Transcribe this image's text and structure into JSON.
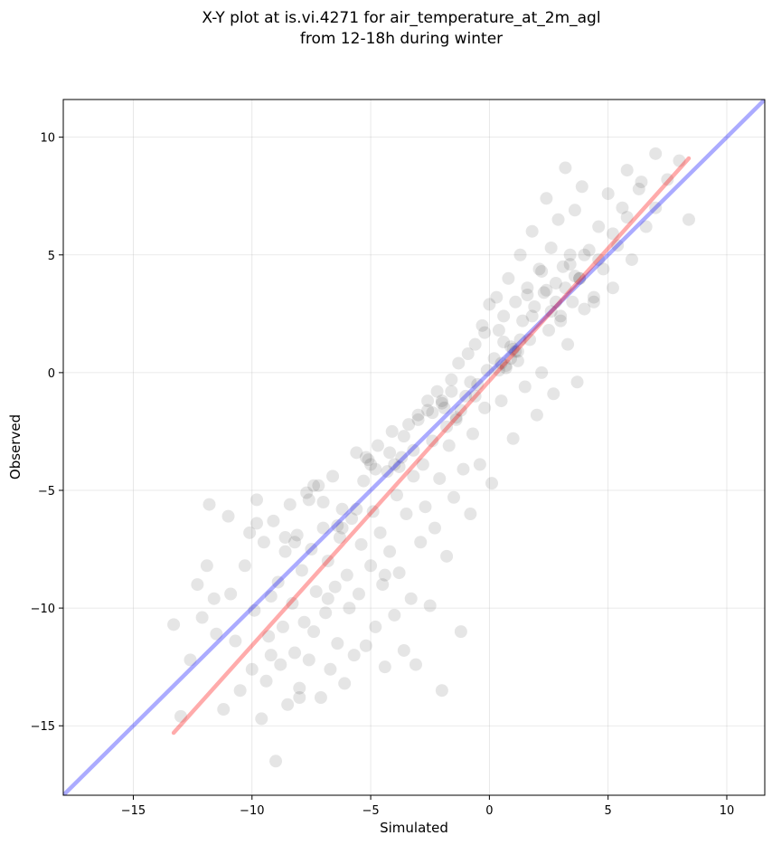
{
  "chart_data": {
    "type": "scatter",
    "title_lines": [
      "X-Y plot at is.vi.4271 for air_temperature_at_2m_agl",
      "from 12-18h during winter"
    ],
    "xlabel": "Simulated",
    "ylabel": "Observed",
    "xlim": [
      -17.95,
      11.6
    ],
    "ylim": [
      -17.95,
      11.6
    ],
    "xticks": [
      -15,
      -10,
      -5,
      0,
      5,
      10
    ],
    "yticks": [
      -15,
      -10,
      -5,
      0,
      5,
      10
    ],
    "xtick_labels": [
      "−15",
      "−10",
      "−5",
      "0",
      "5",
      "10"
    ],
    "ytick_labels": [
      "−15",
      "−10",
      "−5",
      "0",
      "5",
      "10"
    ],
    "grid": true,
    "legend": "none",
    "point_color": "#000000",
    "point_opacity": 0.1,
    "x": [
      -13.3,
      -13.0,
      -12.6,
      -12.3,
      -12.1,
      -11.9,
      -11.8,
      -11.6,
      -11.5,
      -11.2,
      -11.0,
      -10.9,
      -10.7,
      -10.5,
      -10.3,
      -10.1,
      -10.0,
      -9.9,
      -9.8,
      -9.6,
      -9.5,
      -9.4,
      -9.3,
      -9.2,
      -9.1,
      -9.0,
      -8.9,
      -8.8,
      -8.7,
      -8.6,
      -8.5,
      -8.4,
      -8.3,
      -8.2,
      -8.1,
      -8.0,
      -7.9,
      -7.8,
      -7.7,
      -7.6,
      -7.5,
      -7.4,
      -7.3,
      -7.2,
      -7.1,
      -7.0,
      -6.9,
      -6.8,
      -6.7,
      -6.6,
      -6.5,
      -6.4,
      -6.3,
      -6.2,
      -6.1,
      -6.0,
      -5.9,
      -5.8,
      -5.7,
      -5.6,
      -5.5,
      -5.4,
      -5.3,
      -5.2,
      -5.1,
      -5.0,
      -4.9,
      -4.8,
      -4.7,
      -4.6,
      -4.5,
      -4.4,
      -4.3,
      -4.2,
      -4.1,
      -4.0,
      -3.9,
      -3.8,
      -3.7,
      -3.6,
      -3.5,
      -3.4,
      -3.3,
      -3.2,
      -3.1,
      -3.0,
      -2.9,
      -2.8,
      -2.7,
      -2.6,
      -2.5,
      -2.4,
      -2.3,
      -2.2,
      -2.1,
      -2.0,
      -1.9,
      -1.8,
      -1.7,
      -1.6,
      -1.5,
      -1.4,
      -1.3,
      -1.2,
      -1.1,
      -1.0,
      -0.9,
      -0.8,
      -0.7,
      -0.6,
      -0.5,
      -0.4,
      -0.3,
      -0.2,
      -0.1,
      0.0,
      0.1,
      0.2,
      0.3,
      0.4,
      0.5,
      0.6,
      0.7,
      0.8,
      0.9,
      1.0,
      1.1,
      1.2,
      1.3,
      1.4,
      1.5,
      1.6,
      1.7,
      1.8,
      1.9,
      2.0,
      2.1,
      2.2,
      2.3,
      2.4,
      2.5,
      2.6,
      2.7,
      2.8,
      2.9,
      3.0,
      3.1,
      3.2,
      3.3,
      3.4,
      3.5,
      3.6,
      3.7,
      3.8,
      3.9,
      4.0,
      4.2,
      4.4,
      4.6,
      4.8,
      5.0,
      5.2,
      5.4,
      5.6,
      5.8,
      6.0,
      6.3,
      6.6,
      7.0,
      7.5,
      8.0,
      8.4,
      -9.8,
      -9.2,
      -8.6,
      -8.0,
      -7.4,
      -6.8,
      -6.2,
      -5.6,
      -5.0,
      -4.4,
      -3.8,
      -3.2,
      -2.6,
      -2.0,
      -1.4,
      -0.8,
      -0.2,
      0.4,
      1.0,
      1.6,
      2.2,
      2.8,
      3.4,
      4.0,
      4.6,
      5.2,
      5.8,
      6.4,
      7.0,
      -4.8,
      -4.2,
      -3.6,
      -5.2,
      -4.0,
      -1.8,
      -1.2,
      -0.6,
      0.6,
      1.2,
      1.8,
      2.4,
      3.0,
      3.6,
      0.9,
      1.1,
      1.3,
      0.7,
      0.5,
      2.6,
      3.2,
      3.8,
      4.4,
      -7.6,
      -7.0,
      -6.4,
      -8.2,
      -3.0,
      -2.4,
      -2.0,
      -1.6
    ],
    "y": [
      -10.7,
      -14.6,
      -12.2,
      -9.0,
      -10.4,
      -8.2,
      -5.6,
      -9.6,
      -11.1,
      -14.3,
      -6.1,
      -9.4,
      -11.4,
      -13.5,
      -8.2,
      -6.8,
      -12.6,
      -10.1,
      -5.4,
      -14.7,
      -7.2,
      -13.1,
      -11.2,
      -9.5,
      -6.3,
      -16.5,
      -8.9,
      -12.4,
      -10.8,
      -7.6,
      -14.1,
      -5.6,
      -9.8,
      -11.9,
      -6.9,
      -13.4,
      -8.4,
      -10.6,
      -5.1,
      -12.2,
      -7.5,
      -11.0,
      -9.3,
      -4.8,
      -13.8,
      -6.6,
      -10.2,
      -8.0,
      -12.6,
      -4.4,
      -9.1,
      -11.5,
      -7.0,
      -5.8,
      -13.2,
      -8.6,
      -10.0,
      -6.2,
      -12.0,
      -3.4,
      -9.4,
      -7.3,
      -4.6,
      -11.6,
      -3.7,
      -8.2,
      -5.9,
      -10.8,
      -3.1,
      -6.8,
      -9.0,
      -12.5,
      -4.2,
      -7.6,
      -2.5,
      -10.3,
      -5.2,
      -8.5,
      -3.6,
      -11.8,
      -6.0,
      -2.2,
      -9.6,
      -4.4,
      -12.4,
      -1.8,
      -7.2,
      -3.9,
      -5.7,
      -1.2,
      -9.9,
      -2.9,
      -6.6,
      -0.8,
      -4.5,
      -13.5,
      -1.5,
      -7.8,
      -3.1,
      -0.3,
      -5.3,
      -2.0,
      0.4,
      -11.0,
      -4.1,
      -1.0,
      0.8,
      -6.0,
      -2.6,
      1.2,
      -0.5,
      -3.9,
      2.0,
      -1.5,
      0.1,
      2.9,
      -4.7,
      0.6,
      3.2,
      1.8,
      -1.2,
      2.4,
      0.3,
      4.0,
      1.1,
      -2.8,
      3.0,
      0.9,
      5.0,
      2.2,
      -0.6,
      3.6,
      1.4,
      6.0,
      2.8,
      -1.8,
      4.4,
      0.0,
      3.4,
      7.4,
      1.8,
      5.3,
      -0.9,
      3.8,
      6.5,
      2.4,
      4.5,
      8.7,
      1.2,
      5.0,
      3.0,
      6.9,
      -0.4,
      4.0,
      7.9,
      2.7,
      5.2,
      3.2,
      6.2,
      4.4,
      7.6,
      3.6,
      5.4,
      7.0,
      8.6,
      4.8,
      7.8,
      6.2,
      9.3,
      8.2,
      9.0,
      6.5,
      -6.4,
      -12.0,
      -7.0,
      -13.8,
      -4.8,
      -9.6,
      -6.6,
      -5.8,
      -3.9,
      -8.6,
      -4.0,
      -3.3,
      -1.6,
      -1.2,
      -1.9,
      -0.4,
      1.7,
      0.1,
      1.0,
      3.3,
      4.3,
      3.0,
      4.6,
      5.0,
      4.8,
      5.9,
      6.6,
      8.1,
      7.0,
      -4.1,
      -3.4,
      -2.7,
      -3.6,
      -3.9,
      -2.3,
      -1.6,
      -1.0,
      1.3,
      0.5,
      2.4,
      3.5,
      2.2,
      4.1,
      0.6,
      0.9,
      1.4,
      0.2,
      0.4,
      2.6,
      3.6,
      4.0,
      3.0,
      -5.4,
      -5.5,
      -6.5,
      -7.2,
      -2.0,
      -1.7,
      -1.3,
      -0.8
    ],
    "lines": [
      {
        "color": "#0000ff",
        "opacity": 0.33,
        "x": [
          -17.95,
          11.6
        ],
        "y": [
          -17.95,
          11.6
        ]
      },
      {
        "color": "#ff0000",
        "opacity": 0.33,
        "x": [
          -13.3,
          8.4
        ],
        "y": [
          -15.3,
          9.1
        ]
      }
    ]
  }
}
